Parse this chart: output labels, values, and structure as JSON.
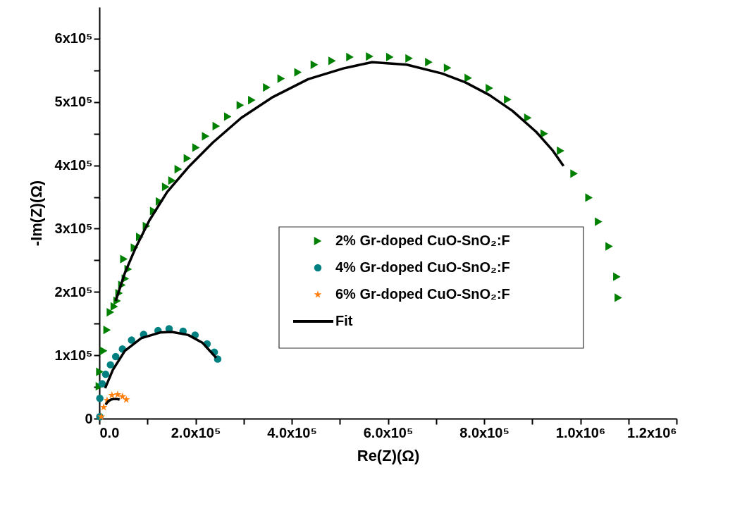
{
  "chart_data": {
    "type": "scatter",
    "xlabel": "Re(Z)(Ω)",
    "ylabel": "-Im(Z)(Ω)",
    "xlim": [
      0,
      1200000
    ],
    "ylim": [
      0,
      650000
    ],
    "xticks": [
      {
        "value": 0,
        "label": "0.0"
      },
      {
        "value": 100000,
        "label": null
      },
      {
        "value": 200000,
        "label": "2.0x10⁵"
      },
      {
        "value": 300000,
        "label": null
      },
      {
        "value": 400000,
        "label": "4.0x10⁵"
      },
      {
        "value": 500000,
        "label": null
      },
      {
        "value": 600000,
        "label": "6.0x10⁵"
      },
      {
        "value": 700000,
        "label": null
      },
      {
        "value": 800000,
        "label": "8.0x10⁵"
      },
      {
        "value": 900000,
        "label": null
      },
      {
        "value": 1000000,
        "label": "1.0x10⁶"
      },
      {
        "value": 1100000,
        "label": null
      },
      {
        "value": 1200000,
        "label": "1.2x10⁶"
      }
    ],
    "yticks": [
      0,
      {
        "value": 50000,
        "label": null
      },
      {
        "value": 100000,
        "label": "1x10⁵"
      },
      {
        "value": 150000,
        "label": null
      },
      {
        "value": 200000,
        "label": "2x10⁵"
      },
      {
        "value": 250000,
        "label": null
      },
      {
        "value": 300000,
        "label": "3x10⁵"
      },
      {
        "value": 350000,
        "label": null
      },
      {
        "value": 400000,
        "label": "4x10⁵"
      },
      {
        "value": 450000,
        "label": null
      },
      {
        "value": 500000,
        "label": "5x10⁵"
      },
      {
        "value": 550000,
        "label": null
      },
      {
        "value": 600000,
        "label": "6x10⁵"
      }
    ],
    "legend": "center right",
    "series": [
      {
        "name": "2% Gr-doped CuO-SnO₂:F",
        "marker": "triangle",
        "color": "#008000",
        "x": [
          0,
          1000,
          9000,
          16000,
          23000,
          31000,
          37000,
          41000,
          47000,
          54000,
          60000,
          51000,
          73000,
          84000,
          98000,
          113000,
          125000,
          138000,
          151000,
          164000,
          183000,
          201000,
          221000,
          243000,
          267000,
          293000,
          317000,
          348000,
          378000,
          413000,
          447000,
          484000,
          521000,
          562000,
          604000,
          644000,
          685000,
          724000,
          767000,
          811000,
          849000,
          891000,
          925000,
          959000,
          987000,
          1018000,
          1038000,
          1060000,
          1076000,
          1079000
        ],
        "values": [
          51000,
          74000,
          107000,
          140000,
          168000,
          177000,
          186000,
          198000,
          211000,
          221000,
          236000,
          252000,
          270000,
          287000,
          304000,
          328000,
          343000,
          366000,
          376000,
          394000,
          411000,
          428000,
          446000,
          462000,
          477000,
          495000,
          503000,
          523000,
          537000,
          547000,
          559000,
          565000,
          571000,
          572000,
          571000,
          569000,
          563000,
          554000,
          538000,
          522000,
          504000,
          475000,
          450000,
          423000,
          387000,
          349000,
          311000,
          272000,
          224000,
          191000
        ]
      },
      {
        "name": "4% Gr-doped CuO-SnO₂:F",
        "marker": "circle",
        "color": "#008080",
        "x": [
          1000,
          1000,
          6000,
          13000,
          23000,
          34000,
          48000,
          67000,
          92000,
          122000,
          145000,
          174000,
          199000,
          224000,
          239000,
          246000
        ],
        "values": [
          3000,
          32000,
          55000,
          70000,
          85000,
          98000,
          110000,
          124000,
          133000,
          139000,
          142000,
          138000,
          132000,
          118000,
          105000,
          94000
        ]
      },
      {
        "name": "6% Gr-doped CuO-SnO₂:F",
        "marker": "star",
        "color": "#ff7f0e",
        "x": [
          4000,
          9000,
          16000,
          26000,
          38000,
          48000,
          56000
        ],
        "values": [
          3000,
          18000,
          29000,
          37000,
          38000,
          35000,
          30000
        ]
      },
      {
        "name": "Fit",
        "type": "line",
        "color": "#000000",
        "x": [
          34000,
          53000,
          75000,
          104000,
          141000,
          185000,
          236000,
          295000,
          361000,
          434000,
          507000,
          567000,
          639000,
          713000,
          761000,
          811000,
          859000,
          908000,
          943000,
          965000
        ],
        "values": [
          186000,
          230000,
          269000,
          313000,
          358000,
          397000,
          436000,
          475000,
          508000,
          536000,
          553000,
          563000,
          559000,
          545000,
          531000,
          511000,
          486000,
          453000,
          423000,
          399000
        ]
      },
      {
        "type": "line",
        "color": "#000000",
        "x": [
          12000,
          28000,
          53000,
          87000,
          126000,
          151000,
          185000,
          214000,
          243000
        ],
        "values": [
          48000,
          77000,
          107000,
          127000,
          136000,
          137000,
          132000,
          120000,
          96000
        ]
      },
      {
        "type": "line",
        "color": "#000000",
        "x": [
          13000,
          18000,
          24000,
          30000,
          36000,
          42000
        ],
        "values": [
          22000,
          27000,
          30000,
          31000,
          31000,
          30000
        ]
      }
    ]
  }
}
